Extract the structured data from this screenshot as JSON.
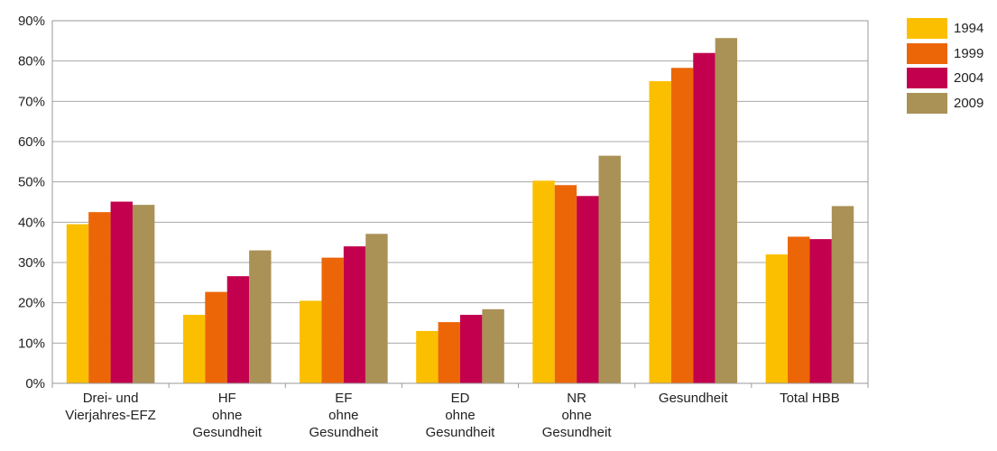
{
  "chart_data": {
    "type": "bar",
    "categories": [
      [
        "Drei- und",
        "Vierjahres-EFZ"
      ],
      [
        "HF",
        "ohne",
        "Gesundheit"
      ],
      [
        "EF",
        "ohne",
        "Gesundheit"
      ],
      [
        "ED",
        "ohne",
        "Gesundheit"
      ],
      [
        "NR",
        "ohne",
        "Gesundheit"
      ],
      [
        "Gesundheit"
      ],
      [
        "Total HBB"
      ]
    ],
    "series": [
      {
        "name": "1994",
        "color": "#fbbf00",
        "values": [
          39.5,
          17,
          20.5,
          13,
          50.3,
          75,
          32
        ]
      },
      {
        "name": "1999",
        "color": "#ec6608",
        "values": [
          42.5,
          22.7,
          31.2,
          15.2,
          49.2,
          78.3,
          36.4
        ]
      },
      {
        "name": "2004",
        "color": "#c2004d",
        "values": [
          45.1,
          26.6,
          34,
          17,
          46.5,
          82,
          35.8
        ]
      },
      {
        "name": "2009",
        "color": "#aa9155",
        "values": [
          44.3,
          33,
          37.1,
          18.4,
          56.5,
          85.7,
          44
        ]
      }
    ],
    "yticks": [
      "0%",
      "10%",
      "20%",
      "30%",
      "40%",
      "50%",
      "60%",
      "70%",
      "80%",
      "90%"
    ],
    "ylim": [
      0,
      90
    ],
    "grid": true,
    "legend": "top-right"
  }
}
